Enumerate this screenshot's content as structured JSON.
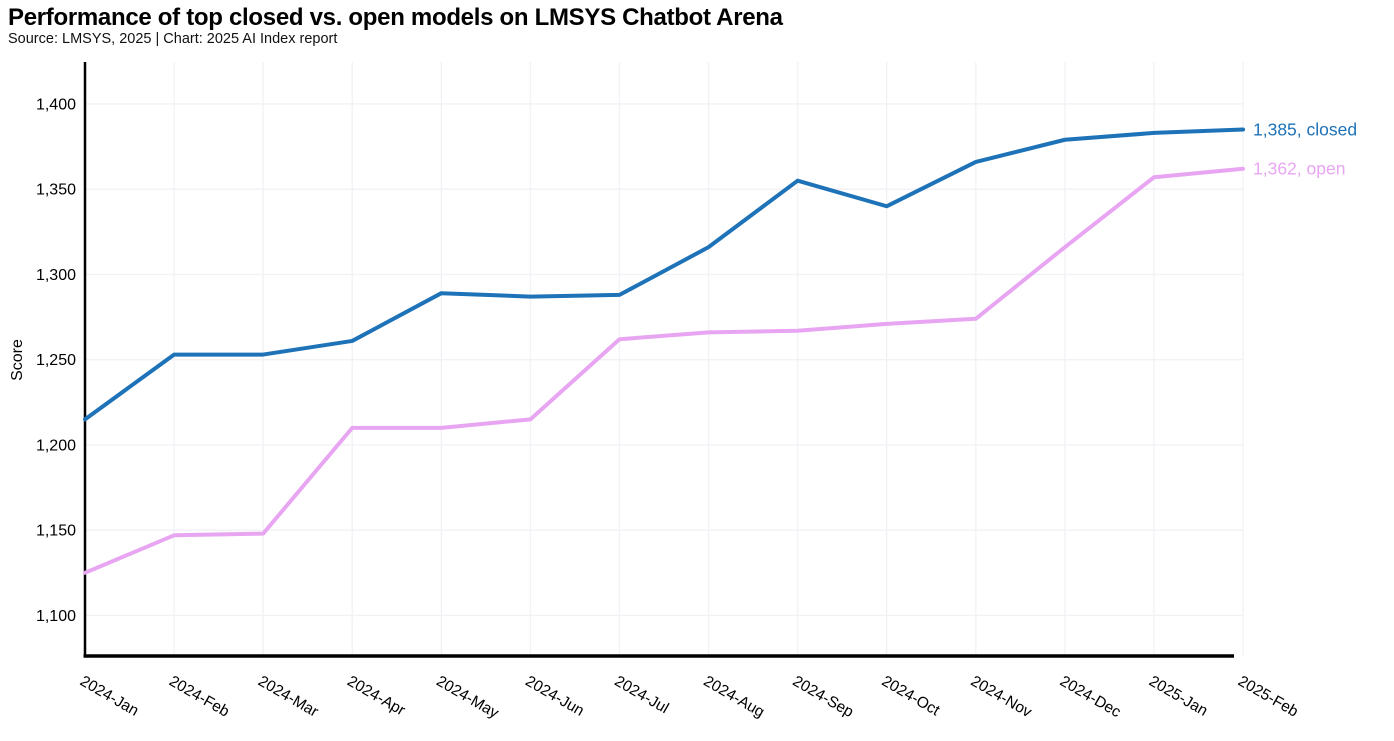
{
  "header": {
    "title": "Performance of top closed vs. open models on LMSYS Chatbot Arena",
    "subtitle": "Source: LMSYS, 2025 | Chart: 2025 AI Index report"
  },
  "chart_data": {
    "type": "line",
    "title": "Performance of top closed vs. open models on LMSYS Chatbot Arena",
    "subtitle": "Source: LMSYS, 2025 | Chart: 2025 AI Index report",
    "categories": [
      "2024-Jan",
      "2024-Feb",
      "2024-Mar",
      "2024-Apr",
      "2024-May",
      "2024-Jun",
      "2024-Jul",
      "2024-Aug",
      "2024-Sep",
      "2024-Oct",
      "2024-Nov",
      "2024-Dec",
      "2025-Jan",
      "2025-Feb"
    ],
    "series": [
      {
        "name": "closed",
        "color": "#1d72b8",
        "end_label": "1,385, closed",
        "values": [
          1215,
          1253,
          1253,
          1261,
          1289,
          1287,
          1288,
          1316,
          1355,
          1340,
          1366,
          1379,
          1383,
          1385
        ]
      },
      {
        "name": "open",
        "color": "#e8a6f2",
        "end_label": "1,362, open",
        "values": [
          1125,
          1147,
          1148,
          1210,
          1210,
          1215,
          1262,
          1266,
          1267,
          1271,
          1274,
          1316,
          1357,
          1362
        ]
      }
    ],
    "xlabel": "",
    "ylabel": "Score",
    "ylim": [
      1074,
      1425
    ],
    "yticks": [
      {
        "value": 1100,
        "label": "1,100"
      },
      {
        "value": 1150,
        "label": "1,150"
      },
      {
        "value": 1200,
        "label": "1,200"
      },
      {
        "value": 1250,
        "label": "1,250"
      },
      {
        "value": 1300,
        "label": "1,300"
      },
      {
        "value": 1350,
        "label": "1,350"
      },
      {
        "value": 1400,
        "label": "1,400"
      }
    ],
    "grid": true,
    "legend_position": "line-end-labels"
  },
  "colors": {
    "grid": "#f2f1f5",
    "axis": "#000000",
    "text": "#000000"
  }
}
